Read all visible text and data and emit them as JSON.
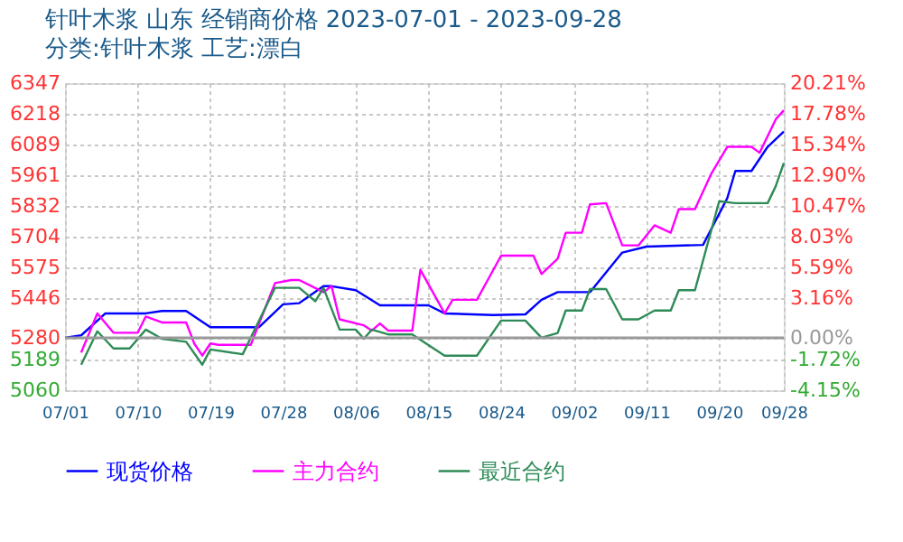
{
  "chart_data": {
    "type": "line",
    "title": "针叶木浆 山东 经销商价格 2023-07-01 - 2023-09-28",
    "subtitle": "分类:针叶木浆 工艺:漂白",
    "xlim": [
      "2023-07-01",
      "2023-09-28"
    ],
    "xticks": [
      {
        "value": "2023-07-01",
        "label": "07/01"
      },
      {
        "value": "2023-07-10",
        "label": "07/10"
      },
      {
        "value": "2023-07-19",
        "label": "07/19"
      },
      {
        "value": "2023-07-28",
        "label": "07/28"
      },
      {
        "value": "2023-08-06",
        "label": "08/06"
      },
      {
        "value": "2023-08-15",
        "label": "08/15"
      },
      {
        "value": "2023-08-24",
        "label": "08/24"
      },
      {
        "value": "2023-09-02",
        "label": "09/02"
      },
      {
        "value": "2023-09-11",
        "label": "09/11"
      },
      {
        "value": "2023-09-20",
        "label": "09/20"
      },
      {
        "value": "2023-09-28",
        "label": "09/28"
      }
    ],
    "ylim": [
      5060,
      6347
    ],
    "yticks": [
      5060,
      5189,
      5280,
      5446,
      5575,
      5704,
      5832,
      5961,
      6089,
      6218,
      6347
    ],
    "y2lim": [
      -4.15,
      20.21
    ],
    "y2ticks": [
      {
        "value": -4.15,
        "label": "-4.15%"
      },
      {
        "value": -1.72,
        "label": "-1.72%"
      },
      {
        "value": 0,
        "label": "0.00%"
      },
      {
        "value": 3.16,
        "label": "3.16%"
      },
      {
        "value": 5.59,
        "label": "5.59%"
      },
      {
        "value": 8.03,
        "label": "8.03%"
      },
      {
        "value": 10.47,
        "label": "10.47%"
      },
      {
        "value": 12.9,
        "label": "12.90%"
      },
      {
        "value": 15.34,
        "label": "15.34%"
      },
      {
        "value": 17.78,
        "label": "17.78%"
      },
      {
        "value": 20.21,
        "label": "20.21%"
      }
    ],
    "ref_lines": [
      {
        "axis": "y2",
        "value": 0,
        "color": "#999999",
        "line_style": "solid"
      }
    ],
    "grid": true,
    "legend": "bottom",
    "marker": "none",
    "line_style": "solid",
    "series": [
      {
        "name": "现货价格",
        "color": "#0000ff",
        "x": [
          "2023-07-01",
          "2023-07-03",
          "2023-07-06",
          "2023-07-11",
          "2023-07-13",
          "2023-07-16",
          "2023-07-19",
          "2023-07-25",
          "2023-07-28",
          "2023-07-30",
          "2023-08-02",
          "2023-08-03",
          "2023-08-06",
          "2023-08-09",
          "2023-08-15",
          "2023-08-17",
          "2023-08-23",
          "2023-08-27",
          "2023-08-29",
          "2023-08-31",
          "2023-09-04",
          "2023-09-08",
          "2023-09-11",
          "2023-09-18",
          "2023-09-21",
          "2023-09-22",
          "2023-09-24",
          "2023-09-26",
          "2023-09-28"
        ],
        "values": [
          5280,
          5290,
          5382,
          5382,
          5392,
          5392,
          5324,
          5324,
          5420,
          5425,
          5496,
          5496,
          5479,
          5416,
          5416,
          5382,
          5375,
          5378,
          5439,
          5471,
          5471,
          5637,
          5662,
          5669,
          5865,
          5979,
          5979,
          6080,
          6144
        ]
      },
      {
        "name": "主力合约",
        "color": "#ff00ff",
        "x": [
          "2023-07-03",
          "2023-07-05",
          "2023-07-07",
          "2023-07-10",
          "2023-07-11",
          "2023-07-13",
          "2023-07-16",
          "2023-07-17",
          "2023-07-18",
          "2023-07-19",
          "2023-07-20",
          "2023-07-24",
          "2023-07-27",
          "2023-07-29",
          "2023-07-30",
          "2023-08-02",
          "2023-08-03",
          "2023-08-04",
          "2023-08-07",
          "2023-08-08",
          "2023-08-09",
          "2023-08-10",
          "2023-08-13",
          "2023-08-14",
          "2023-08-17",
          "2023-08-18",
          "2023-08-21",
          "2023-08-24",
          "2023-08-28",
          "2023-08-29",
          "2023-08-31",
          "2023-09-01",
          "2023-09-03",
          "2023-09-04",
          "2023-09-06",
          "2023-09-08",
          "2023-09-10",
          "2023-09-12",
          "2023-09-14",
          "2023-09-15",
          "2023-09-17",
          "2023-09-19",
          "2023-09-21",
          "2023-09-24",
          "2023-09-25",
          "2023-09-27",
          "2023-09-28"
        ],
        "values": [
          5218,
          5382,
          5301,
          5301,
          5369,
          5344,
          5344,
          5256,
          5205,
          5256,
          5250,
          5250,
          5509,
          5522,
          5522,
          5471,
          5496,
          5357,
          5332,
          5310,
          5340,
          5310,
          5310,
          5565,
          5382,
          5439,
          5439,
          5624,
          5624,
          5547,
          5611,
          5720,
          5720,
          5839,
          5844,
          5667,
          5667,
          5751,
          5720,
          5819,
          5819,
          5966,
          6080,
          6080,
          6055,
          6195,
          6233
        ]
      },
      {
        "name": "最近合约",
        "color": "#2e8b57",
        "x": [
          "2023-07-03",
          "2023-07-05",
          "2023-07-07",
          "2023-07-09",
          "2023-07-11",
          "2023-07-13",
          "2023-07-16",
          "2023-07-18",
          "2023-07-19",
          "2023-07-23",
          "2023-07-27",
          "2023-07-30",
          "2023-08-01",
          "2023-08-02",
          "2023-08-04",
          "2023-08-06",
          "2023-08-07",
          "2023-08-08",
          "2023-08-10",
          "2023-08-13",
          "2023-08-17",
          "2023-08-21",
          "2023-08-24",
          "2023-08-27",
          "2023-08-29",
          "2023-08-31",
          "2023-09-01",
          "2023-09-03",
          "2023-09-04",
          "2023-09-06",
          "2023-09-08",
          "2023-09-10",
          "2023-09-12",
          "2023-09-14",
          "2023-09-15",
          "2023-09-17",
          "2023-09-20",
          "2023-09-22",
          "2023-09-26",
          "2023-09-27",
          "2023-09-28"
        ],
        "values": [
          5167,
          5307,
          5235,
          5235,
          5314,
          5276,
          5263,
          5167,
          5231,
          5211,
          5489,
          5489,
          5433,
          5489,
          5314,
          5314,
          5276,
          5314,
          5294,
          5294,
          5205,
          5205,
          5352,
          5352,
          5280,
          5300,
          5394,
          5394,
          5484,
          5484,
          5357,
          5357,
          5394,
          5394,
          5479,
          5479,
          5852,
          5844,
          5844,
          5915,
          6012
        ]
      }
    ]
  }
}
